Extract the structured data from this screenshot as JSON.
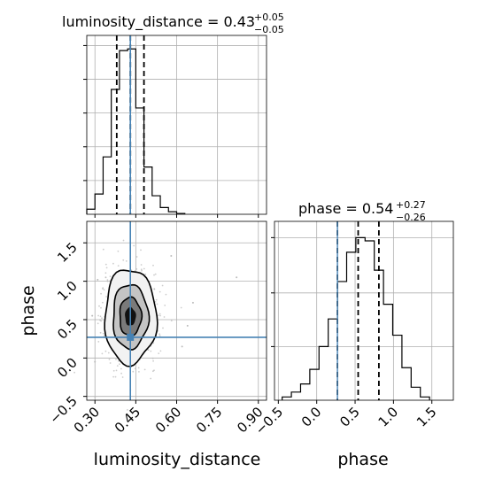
{
  "chart_data": {
    "type": "corner",
    "truth": {
      "luminosity_distance": 0.43,
      "phase": 0.27
    },
    "panels": [
      {
        "id": "hist-luminosity-distance",
        "type": "histogram",
        "title": "luminosity_distance = 0.43",
        "title_plus": "+0.05",
        "title_minus": "−0.05",
        "xlim": [
          0.27,
          0.93
        ],
        "bin_edges": [
          0.27,
          0.3,
          0.33,
          0.36,
          0.39,
          0.42,
          0.45,
          0.48,
          0.51,
          0.54,
          0.57,
          0.6,
          0.63
        ],
        "counts": [
          0.03,
          0.12,
          0.34,
          0.74,
          0.97,
          0.98,
          0.63,
          0.28,
          0.11,
          0.04,
          0.015,
          0.005
        ],
        "ylim": [
          0,
          1.06
        ],
        "quantiles": [
          0.38,
          0.43,
          0.48
        ],
        "grid": true
      },
      {
        "id": "hist-phase",
        "type": "histogram",
        "title": "phase = 0.54",
        "title_plus": "+0.27",
        "title_minus": "−0.26",
        "xlim": [
          -0.55,
          1.78
        ],
        "bin_edges": [
          -0.45,
          -0.33,
          -0.21,
          -0.09,
          0.03,
          0.15,
          0.27,
          0.39,
          0.51,
          0.63,
          0.75,
          0.87,
          0.99,
          1.11,
          1.23,
          1.35,
          1.47
        ],
        "counts": [
          0.02,
          0.05,
          0.1,
          0.19,
          0.33,
          0.5,
          0.73,
          0.91,
          1.0,
          0.98,
          0.8,
          0.59,
          0.4,
          0.2,
          0.08,
          0.02
        ],
        "ylim": [
          0,
          1.1
        ],
        "quantiles": [
          0.27,
          0.54,
          0.81
        ],
        "grid": true
      },
      {
        "id": "joint-luminosity-distance-phase",
        "type": "scatter2d",
        "xlim": [
          0.27,
          0.93
        ],
        "ylim": [
          -0.55,
          1.78
        ],
        "center": [
          0.43,
          0.54
        ],
        "contours": [
          {
            "level": "outer",
            "rx": 0.095,
            "ry": 0.62
          },
          {
            "level": "mid",
            "rx": 0.065,
            "ry": 0.42
          },
          {
            "level": "inner",
            "rx": 0.04,
            "ry": 0.25
          },
          {
            "level": "core",
            "rx": 0.02,
            "ry": 0.12
          }
        ],
        "outliers": [
          [
            0.82,
            1.05
          ],
          [
            0.66,
            0.72
          ],
          [
            0.3,
            -0.05
          ],
          [
            0.31,
            1.02
          ],
          [
            0.62,
            0.15
          ],
          [
            0.58,
            1.33
          ],
          [
            0.29,
            0.55
          ],
          [
            0.64,
            0.42
          ]
        ],
        "grid": true
      }
    ],
    "axes": {
      "x_label_left": "luminosity_distance",
      "x_label_right": "phase",
      "y_label_left": "phase",
      "x_ticks_left": [
        "0.30",
        "0.45",
        "0.60",
        "0.75",
        "0.90"
      ],
      "x_tick_values_left": [
        0.3,
        0.45,
        0.6,
        0.75,
        0.9
      ],
      "y_ticks_left": [
        "−0.5",
        "0.0",
        "0.5",
        "1.0",
        "1.5"
      ],
      "y_tick_values_left": [
        -0.5,
        0.0,
        0.5,
        1.0,
        1.5
      ],
      "x_ticks_right": [
        "−0.5",
        "0.0",
        "0.5",
        "1.0",
        "1.5"
      ],
      "x_tick_values_right": [
        -0.5,
        0.0,
        0.5,
        1.0,
        1.5
      ]
    },
    "colors": {
      "truth": "#4682b4",
      "hist": "#000000",
      "grid": "#b0b0b0",
      "points": "#bcbcbc",
      "fill_outer": "#f2f2f2",
      "fill_mid": "#c4c4c4",
      "fill_inner": "#7a7a7a",
      "fill_core": "#111111"
    }
  }
}
